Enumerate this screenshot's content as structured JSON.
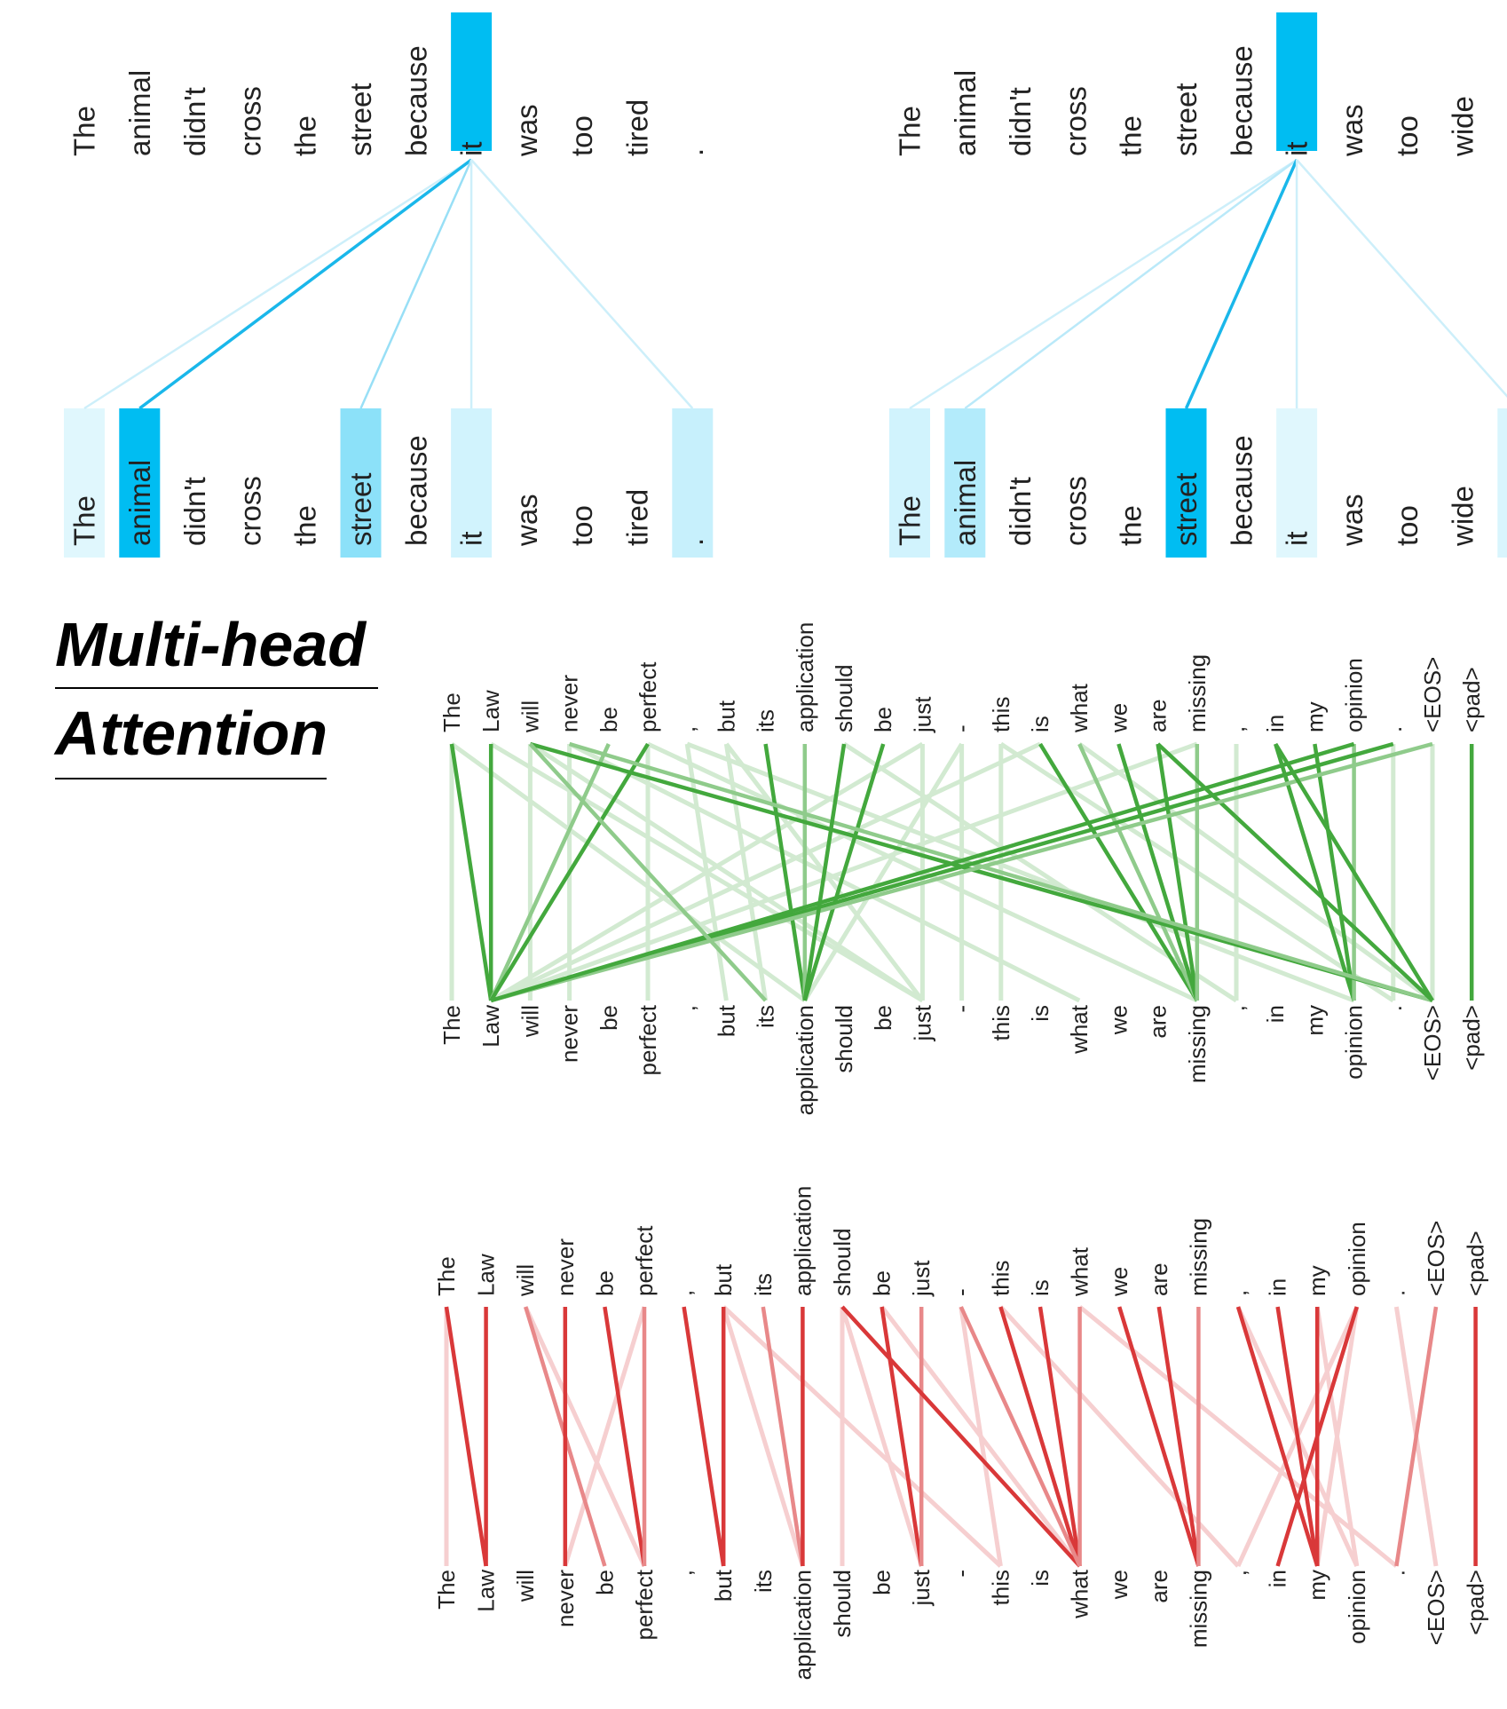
{
  "heading": {
    "line1": "Multi-head",
    "line2": "Attention"
  },
  "colors": {
    "blue_accent": "#00bdf2",
    "blue_link": "#1ab7ea",
    "green_link": "#33a02c",
    "red_link": "#d62728"
  },
  "panel_tired": {
    "tokens": [
      "The",
      "animal",
      "didn't",
      "cross",
      "the",
      "street",
      "because",
      "it",
      "was",
      "too",
      "tired",
      "."
    ],
    "query_index": 7,
    "weights": [
      0.12,
      1.0,
      0,
      0,
      0,
      0.45,
      0,
      0.18,
      0,
      0,
      0,
      0.22
    ]
  },
  "panel_wide": {
    "tokens": [
      "The",
      "animal",
      "didn't",
      "cross",
      "the",
      "street",
      "because",
      "it",
      "was",
      "too",
      "wide",
      "."
    ],
    "query_index": 7,
    "weights": [
      0.18,
      0.3,
      0,
      0,
      0,
      1.0,
      0,
      0.12,
      0,
      0,
      0,
      0.15
    ]
  },
  "panel_green": {
    "tokens": [
      "The",
      "Law",
      "will",
      "never",
      "be",
      "perfect",
      ",",
      "but",
      "its",
      "application",
      "should",
      "be",
      "just",
      "-",
      "this",
      "is",
      "what",
      "we",
      "are",
      "missing",
      ",",
      "in",
      "my",
      "opinion",
      ".",
      "<EOS>",
      "<pad>"
    ],
    "strong_links": [
      [
        0,
        1
      ],
      [
        1,
        1
      ],
      [
        4,
        1
      ],
      [
        5,
        1
      ],
      [
        8,
        9
      ],
      [
        9,
        9
      ],
      [
        11,
        9
      ],
      [
        15,
        19
      ],
      [
        16,
        19
      ],
      [
        17,
        19
      ],
      [
        18,
        19
      ],
      [
        19,
        19
      ],
      [
        21,
        23
      ],
      [
        22,
        23
      ],
      [
        23,
        23
      ],
      [
        26,
        26
      ],
      [
        2,
        25
      ],
      [
        3,
        25
      ],
      [
        18,
        25
      ],
      [
        24,
        1
      ],
      [
        25,
        1
      ],
      [
        21,
        25
      ],
      [
        23,
        1
      ],
      [
        2,
        8
      ],
      [
        10,
        9
      ]
    ],
    "faint_links": [
      [
        0,
        0
      ],
      [
        2,
        2
      ],
      [
        3,
        3
      ],
      [
        5,
        5
      ],
      [
        6,
        7
      ],
      [
        7,
        8
      ],
      [
        12,
        12
      ],
      [
        13,
        13
      ],
      [
        14,
        14
      ],
      [
        20,
        20
      ],
      [
        24,
        24
      ],
      [
        25,
        25
      ],
      [
        2,
        12
      ],
      [
        3,
        16
      ],
      [
        5,
        19
      ],
      [
        6,
        23
      ],
      [
        7,
        12
      ],
      [
        10,
        20
      ],
      [
        14,
        24
      ],
      [
        12,
        1
      ],
      [
        13,
        9
      ],
      [
        15,
        1
      ],
      [
        16,
        25
      ],
      [
        19,
        1
      ],
      [
        1,
        12
      ],
      [
        0,
        9
      ]
    ]
  },
  "panel_red": {
    "tokens": [
      "The",
      "Law",
      "will",
      "never",
      "be",
      "perfect",
      ",",
      "but",
      "its",
      "application",
      "should",
      "be",
      "just",
      "-",
      "this",
      "is",
      "what",
      "we",
      "are",
      "missing",
      ",",
      "in",
      "my",
      "opinion",
      ".",
      "<EOS>",
      "<pad>"
    ],
    "strong_links": [
      [
        0,
        1
      ],
      [
        1,
        1
      ],
      [
        2,
        4
      ],
      [
        3,
        3
      ],
      [
        4,
        5
      ],
      [
        5,
        5
      ],
      [
        6,
        7
      ],
      [
        7,
        7
      ],
      [
        8,
        9
      ],
      [
        9,
        9
      ],
      [
        11,
        12
      ],
      [
        12,
        12
      ],
      [
        14,
        16
      ],
      [
        15,
        16
      ],
      [
        16,
        16
      ],
      [
        17,
        19
      ],
      [
        18,
        19
      ],
      [
        19,
        19
      ],
      [
        21,
        22
      ],
      [
        22,
        22
      ],
      [
        25,
        24
      ],
      [
        26,
        26
      ],
      [
        10,
        16
      ],
      [
        13,
        16
      ],
      [
        20,
        22
      ],
      [
        23,
        21
      ]
    ],
    "faint_links": [
      [
        5,
        3
      ],
      [
        2,
        5
      ],
      [
        7,
        9
      ],
      [
        10,
        10
      ],
      [
        13,
        14
      ],
      [
        11,
        16
      ],
      [
        7,
        14
      ],
      [
        24,
        25
      ],
      [
        23,
        22
      ],
      [
        22,
        23
      ],
      [
        16,
        24
      ],
      [
        14,
        20
      ],
      [
        10,
        12
      ],
      [
        20,
        23
      ],
      [
        0,
        0
      ],
      [
        23,
        20
      ]
    ]
  }
}
